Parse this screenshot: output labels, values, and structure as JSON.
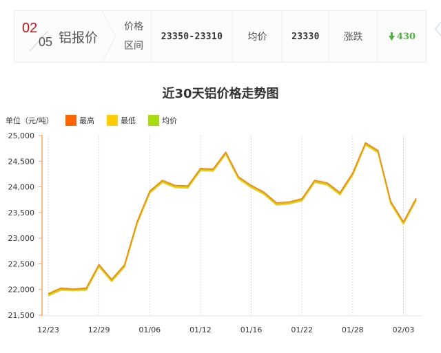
{
  "quote_bar": {
    "date_day": "02",
    "date_month": "05",
    "product": "铝报价",
    "range_label_line1": "价格",
    "range_label_line2": "区间",
    "range_value": "23350-23310",
    "avg_label": "均价",
    "avg_value": "23330",
    "change_label": "涨跌",
    "change_value": "430",
    "change_direction": "down",
    "change_color": "#4caf3f",
    "icons": {
      "change": "arrow-down-icon",
      "next": "chevron-left-icon"
    }
  },
  "chart": {
    "title": "近30天铝价格走势图",
    "unit_label": "单位（元/吨）",
    "legend": [
      {
        "label": "最高",
        "color": "#ff6600"
      },
      {
        "label": "最低",
        "color": "#ffcc00"
      },
      {
        "label": "均价",
        "color": "#aadd11"
      }
    ]
  },
  "chart_data": {
    "type": "line",
    "title": "近30天铝价格走势图",
    "xlabel": "",
    "ylabel": "单位（元/吨）",
    "ylim": [
      21500,
      25000
    ],
    "yticks": [
      "25,000",
      "24,500",
      "24,000",
      "23,500",
      "23,000",
      "22,500",
      "22,000",
      "21,500"
    ],
    "xticks": [
      "12/23",
      "12/29",
      "01/06",
      "01/12",
      "01/16",
      "01/22",
      "01/28",
      "02/03"
    ],
    "xtick_indices": [
      0,
      4,
      8,
      12,
      16,
      20,
      24,
      28
    ],
    "grid": "vertical dashed at x ticks",
    "legend_position": "top-left",
    "series": [
      {
        "name": "最高",
        "color": "#ff6600",
        "values": [
          21920,
          22030,
          22010,
          22030,
          22490,
          22200,
          22480,
          23320,
          23920,
          24130,
          24030,
          24020,
          24360,
          24350,
          24680,
          24200,
          24030,
          23900,
          23690,
          23710,
          23770,
          24130,
          24080,
          23890,
          24270,
          24860,
          24710,
          23720,
          23320,
          23780
        ]
      },
      {
        "name": "最低",
        "color": "#ffcc00",
        "values": [
          21880,
          21990,
          21980,
          21990,
          22450,
          22160,
          22440,
          23280,
          23880,
          24090,
          23990,
          23980,
          24320,
          24310,
          24640,
          24160,
          23990,
          23860,
          23650,
          23670,
          23730,
          24090,
          24040,
          23850,
          24230,
          24820,
          24670,
          23680,
          23280,
          23740
        ]
      },
      {
        "name": "均价",
        "color": "#aadd11",
        "values": [
          21900,
          22010,
          22000,
          22010,
          22470,
          22180,
          22460,
          23300,
          23900,
          24110,
          24010,
          24000,
          24340,
          24330,
          24660,
          24180,
          24010,
          23880,
          23670,
          23690,
          23750,
          24110,
          24060,
          23870,
          24250,
          24840,
          24690,
          23700,
          23300,
          23760
        ]
      }
    ]
  }
}
